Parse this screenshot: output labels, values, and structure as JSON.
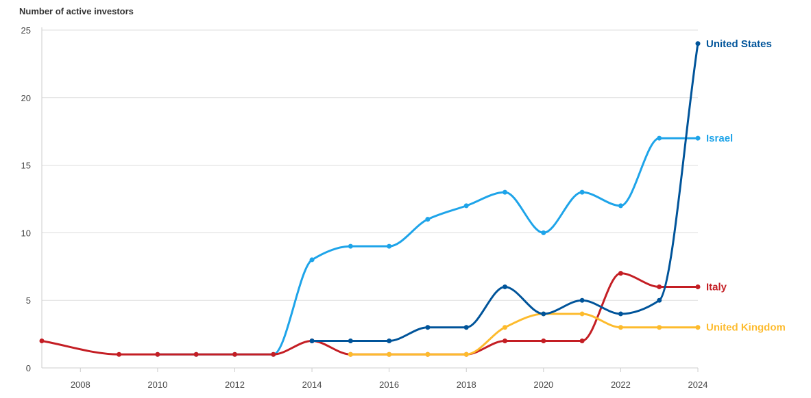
{
  "chart_data": {
    "type": "line",
    "ylabel": "Number of active investors",
    "xlim": [
      2007,
      2024
    ],
    "ylim": [
      0,
      25
    ],
    "x_ticks": [
      2008,
      2010,
      2012,
      2014,
      2016,
      2018,
      2020,
      2022,
      2024
    ],
    "y_ticks": [
      0,
      5,
      10,
      15,
      20,
      25
    ],
    "grid": "horizontal",
    "legend": "end-of-line labels",
    "series": [
      {
        "name": "Israel",
        "color": "#1ea4e9",
        "x": [
          2010,
          2011,
          2012,
          2013,
          2014,
          2015,
          2016,
          2017,
          2018,
          2019,
          2020,
          2021,
          2022,
          2023,
          2024
        ],
        "y": [
          1,
          1,
          1,
          1,
          8,
          9,
          9,
          11,
          12,
          13,
          10,
          13,
          12,
          17,
          17
        ]
      },
      {
        "name": "Italy",
        "color": "#c41e24",
        "x": [
          2007,
          2009,
          2010,
          2011,
          2012,
          2013,
          2014,
          2015,
          2016,
          2017,
          2018,
          2019,
          2020,
          2021,
          2022,
          2023,
          2024
        ],
        "y": [
          2,
          1,
          1,
          1,
          1,
          1,
          2,
          1,
          1,
          1,
          1,
          2,
          2,
          2,
          7,
          6,
          6
        ]
      },
      {
        "name": "United Kingdom",
        "color": "#fdbb2d",
        "x": [
          2015,
          2016,
          2017,
          2018,
          2019,
          2020,
          2021,
          2022,
          2023,
          2024
        ],
        "y": [
          1,
          1,
          1,
          1,
          3,
          4,
          4,
          3,
          3,
          3
        ]
      },
      {
        "name": "United States",
        "color": "#00549a",
        "x": [
          2014,
          2015,
          2016,
          2017,
          2018,
          2019,
          2020,
          2021,
          2022,
          2023,
          2024
        ],
        "y": [
          2,
          2,
          2,
          3,
          3,
          6,
          4,
          5,
          4,
          5,
          24
        ]
      }
    ]
  }
}
